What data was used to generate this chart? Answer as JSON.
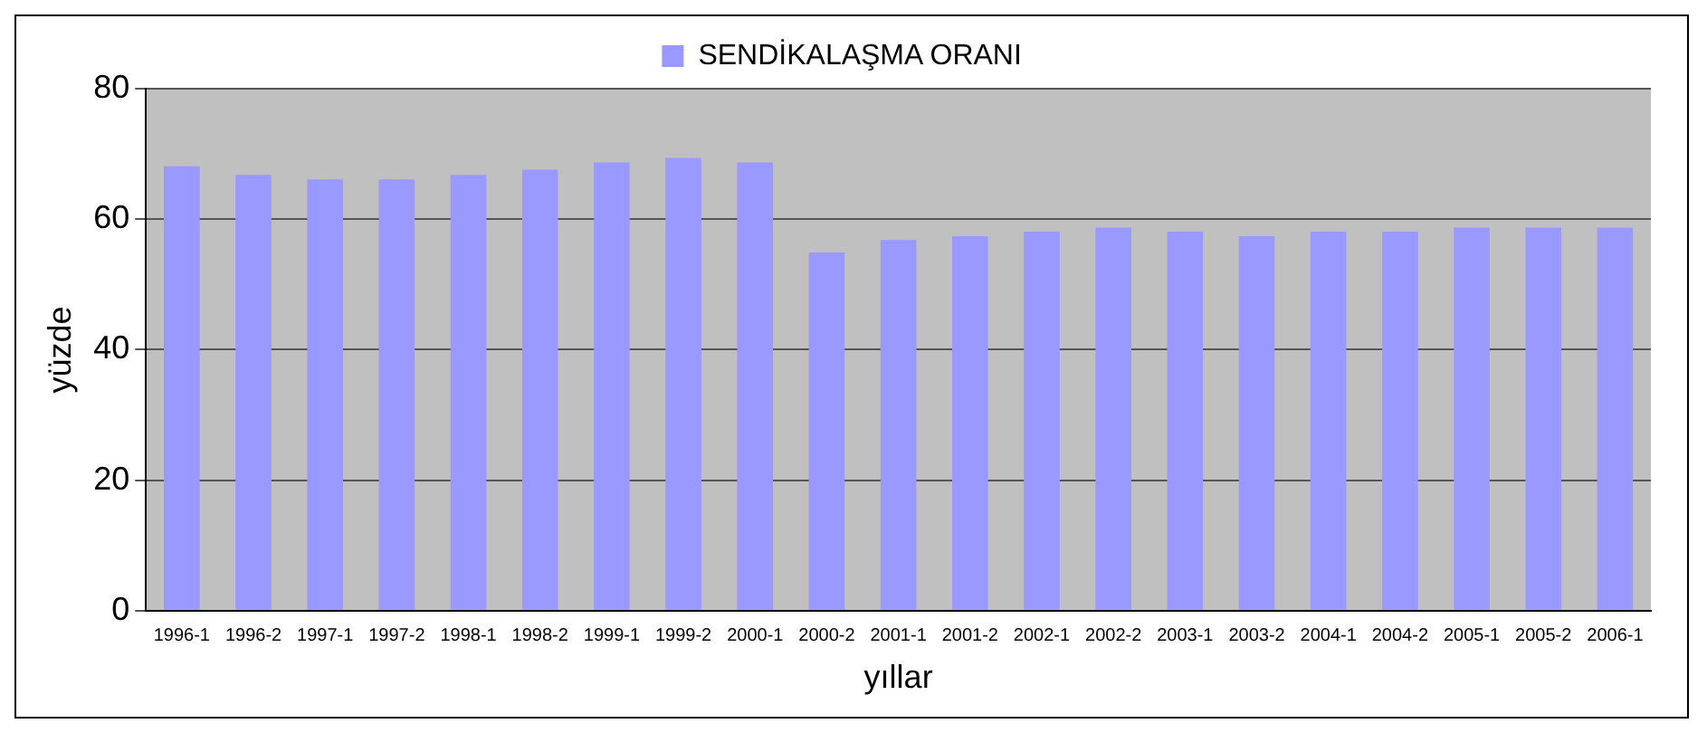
{
  "chart_data": {
    "type": "bar",
    "categories": [
      "1996-1",
      "1996-2",
      "1997-1",
      "1997-2",
      "1998-1",
      "1998-2",
      "1999-1",
      "1999-2",
      "2000-1",
      "2000-2",
      "2001-1",
      "2001-2",
      "2002-1",
      "2002-2",
      "2003-1",
      "2003-2",
      "2004-1",
      "2004-2",
      "2005-1",
      "2005-2",
      "2006-1"
    ],
    "series": [
      {
        "name": "SENDİKALAŞMA ORANI",
        "color": "#9999ff",
        "values": [
          68.1,
          66.8,
          66.1,
          66.1,
          66.8,
          67.6,
          68.7,
          69.4,
          68.7,
          54.9,
          56.8,
          57.4,
          58.1,
          58.7,
          58.1,
          57.4,
          58.1,
          58.1,
          58.7,
          58.7,
          58.7
        ]
      }
    ],
    "xlabel": "yıllar",
    "ylabel": "yüzde",
    "ylim": [
      0,
      80
    ],
    "yticks": [
      0,
      20,
      40,
      60,
      80
    ],
    "grid": "y",
    "legend": "top"
  }
}
